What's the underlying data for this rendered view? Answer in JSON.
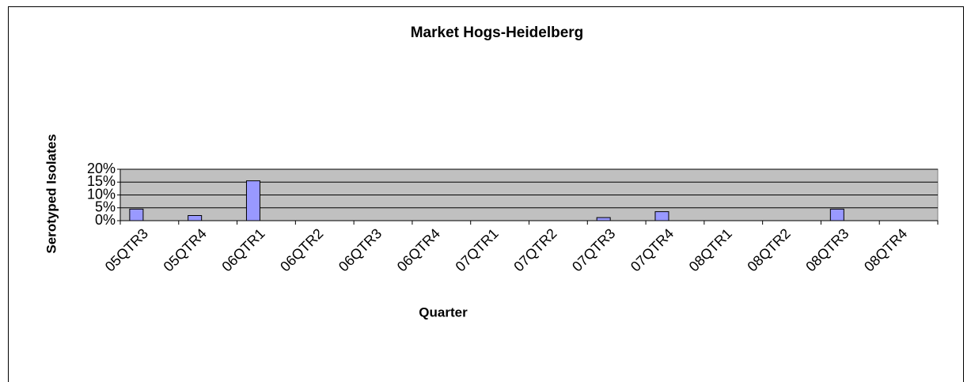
{
  "chart_data": {
    "type": "bar",
    "title": "Market Hogs-Heidelberg",
    "x_label": "Quarter",
    "y_label": "Serotyped Isolates",
    "categories": [
      "05QTR3",
      "05QTR4",
      "06QTR1",
      "06QTR2",
      "06QTR3",
      "06QTR4",
      "07QTR1",
      "07QTR2",
      "07QTR3",
      "07QTR4",
      "08QTR1",
      "08QTR2",
      "08QTR3",
      "08QTR4"
    ],
    "values": [
      4.5,
      2,
      15.5,
      0,
      0,
      0,
      0,
      0,
      1.2,
      3.5,
      0,
      0,
      4.5,
      0
    ],
    "color": "#9999ff",
    "ylim": [
      0,
      20
    ],
    "yticks": [
      {
        "value": 0,
        "label": "0%"
      },
      {
        "value": 5,
        "label": "5%"
      },
      {
        "value": 10,
        "label": "10%"
      },
      {
        "value": 15,
        "label": "15%"
      },
      {
        "value": 20,
        "label": "20%"
      }
    ],
    "grid": true
  }
}
